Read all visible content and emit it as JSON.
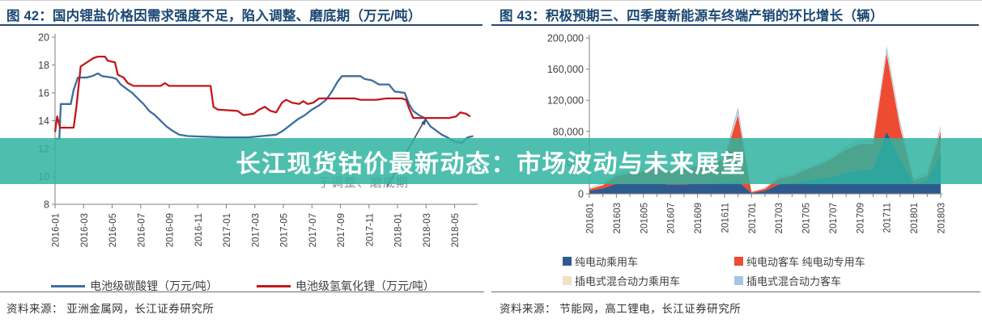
{
  "watermark": {
    "text": "长江现货钴价最新动态：市场波动与未来展望",
    "text_color": "#ffffff",
    "band_color": "rgba(47,180,160,0.85)"
  },
  "left_panel": {
    "title": "图 42：国内锂盐价格因需求强度不足，陷入调整、磨底期（万元/吨）",
    "annotation": "于调整、磨底期",
    "source": "资料来源： 亚洲金属网，长江证券研究所",
    "chart_data": {
      "type": "line",
      "title": "国内锂盐价格因需求强度不足，陷入调整、磨底期",
      "ylabel": "万元/吨",
      "ylim": [
        8,
        20
      ],
      "yticks": [
        8,
        10,
        12,
        14,
        16,
        18,
        20
      ],
      "grid": false,
      "legend_position": "bottom",
      "x_unit": "months since 2016-01",
      "xtick_positions": [
        0,
        2,
        4,
        6,
        8,
        10,
        12,
        14,
        16,
        18,
        20,
        22,
        24,
        26,
        28
      ],
      "xtick_labels": [
        "2016-01",
        "2016-03",
        "2016-05",
        "2016-07",
        "2016-09",
        "2016-11",
        "2017-01",
        "2017-03",
        "2017-05",
        "2017-07",
        "2017-09",
        "2017-11",
        "2018-01",
        "2018-03",
        "2018-05"
      ],
      "series": [
        {
          "name": "电池级碳酸锂（万元/吨）",
          "color": "#3d6d9e",
          "points": [
            [
              0,
              12.7
            ],
            [
              0.3,
              12.7
            ],
            [
              0.4,
              15.2
            ],
            [
              1.1,
              15.2
            ],
            [
              1.3,
              16.2
            ],
            [
              1.6,
              17.1
            ],
            [
              2.2,
              17.1
            ],
            [
              2.6,
              17.2
            ],
            [
              3.0,
              17.4
            ],
            [
              3.3,
              17.2
            ],
            [
              4.0,
              17.1
            ],
            [
              4.3,
              17.0
            ],
            [
              4.6,
              16.6
            ],
            [
              5.0,
              16.3
            ],
            [
              5.4,
              16.0
            ],
            [
              5.8,
              15.6
            ],
            [
              6.2,
              15.2
            ],
            [
              6.6,
              14.7
            ],
            [
              7.0,
              14.4
            ],
            [
              7.4,
              14.0
            ],
            [
              7.8,
              13.6
            ],
            [
              8.2,
              13.3
            ],
            [
              8.7,
              13.0
            ],
            [
              9.3,
              12.9
            ],
            [
              10.5,
              12.85
            ],
            [
              12.0,
              12.8
            ],
            [
              13.5,
              12.8
            ],
            [
              14.5,
              12.9
            ],
            [
              15.5,
              13.0
            ],
            [
              16.0,
              13.3
            ],
            [
              16.5,
              13.7
            ],
            [
              17.0,
              14.1
            ],
            [
              17.5,
              14.4
            ],
            [
              18.0,
              14.8
            ],
            [
              18.5,
              15.1
            ],
            [
              19.0,
              15.5
            ],
            [
              19.4,
              16.1
            ],
            [
              19.8,
              16.8
            ],
            [
              20.1,
              17.2
            ],
            [
              21.4,
              17.2
            ],
            [
              21.7,
              17.0
            ],
            [
              22.2,
              16.9
            ],
            [
              22.7,
              16.6
            ],
            [
              23.4,
              16.6
            ],
            [
              23.8,
              16.1
            ],
            [
              24.5,
              16.0
            ],
            [
              24.8,
              15.2
            ],
            [
              25.1,
              14.7
            ],
            [
              25.5,
              14.4
            ],
            [
              25.9,
              14.2
            ],
            [
              26.3,
              13.6
            ],
            [
              26.7,
              13.3
            ],
            [
              27.1,
              13.0
            ],
            [
              27.5,
              12.8
            ],
            [
              28.0,
              12.5
            ],
            [
              28.5,
              12.4
            ],
            [
              28.9,
              12.8
            ],
            [
              29.3,
              12.9
            ]
          ]
        },
        {
          "name": "电池级氢氧化锂（万元/吨）",
          "color": "#c2181d",
          "points": [
            [
              0,
              13.2
            ],
            [
              0.15,
              14.3
            ],
            [
              0.35,
              13.5
            ],
            [
              1.3,
              13.5
            ],
            [
              1.5,
              15.0
            ],
            [
              1.8,
              17.9
            ],
            [
              2.1,
              18.1
            ],
            [
              2.4,
              18.3
            ],
            [
              2.7,
              18.5
            ],
            [
              3.0,
              18.6
            ],
            [
              3.5,
              18.6
            ],
            [
              3.7,
              18.3
            ],
            [
              4.2,
              18.2
            ],
            [
              4.4,
              17.3
            ],
            [
              4.8,
              17.1
            ],
            [
              5.1,
              16.7
            ],
            [
              5.5,
              16.5
            ],
            [
              7.4,
              16.5
            ],
            [
              7.7,
              16.7
            ],
            [
              8.0,
              16.5
            ],
            [
              10.9,
              16.5
            ],
            [
              11.1,
              15.0
            ],
            [
              11.4,
              14.8
            ],
            [
              12.8,
              14.7
            ],
            [
              13.2,
              14.4
            ],
            [
              13.9,
              14.5
            ],
            [
              14.3,
              14.8
            ],
            [
              14.7,
              15.0
            ],
            [
              15.1,
              14.7
            ],
            [
              15.5,
              14.6
            ],
            [
              15.9,
              15.3
            ],
            [
              16.2,
              15.5
            ],
            [
              16.6,
              15.3
            ],
            [
              17.1,
              15.2
            ],
            [
              17.4,
              15.4
            ],
            [
              17.7,
              15.2
            ],
            [
              18.1,
              15.3
            ],
            [
              18.5,
              15.6
            ],
            [
              21.0,
              15.6
            ],
            [
              21.4,
              15.5
            ],
            [
              22.5,
              15.5
            ],
            [
              23.2,
              15.6
            ],
            [
              24.3,
              15.6
            ],
            [
              24.6,
              15.5
            ],
            [
              24.8,
              14.9
            ],
            [
              25.1,
              14.2
            ],
            [
              27.6,
              14.2
            ],
            [
              28.1,
              14.3
            ],
            [
              28.4,
              14.6
            ],
            [
              28.8,
              14.5
            ],
            [
              29.1,
              14.3
            ]
          ]
        }
      ]
    }
  },
  "right_panel": {
    "title": "图 43：积极预期三、四季度新能源车终端产销的环比增长（辆）",
    "source": "资料来源： 节能网，高工锂电，长江证券研究所",
    "chart_data": {
      "type": "area",
      "stacked": true,
      "title": "积极预期三、四季度新能源车终端产销的环比增长",
      "ylabel": "辆",
      "ylim": [
        0,
        200000
      ],
      "yticks": [
        0,
        40000,
        80000,
        120000,
        160000,
        200000
      ],
      "ytick_labels": [
        "0",
        "40,000",
        "80,000",
        "120,000",
        "160,000",
        "200,000"
      ],
      "grid": false,
      "legend_position": "bottom",
      "categories": [
        "201601",
        "201602",
        "201603",
        "201604",
        "201605",
        "201606",
        "201607",
        "201608",
        "201609",
        "201610",
        "201611",
        "201612",
        "201701",
        "201702",
        "201703",
        "201704",
        "201705",
        "201706",
        "201707",
        "201708",
        "201709",
        "201710",
        "201711",
        "201712",
        "201801",
        "201802",
        "201803"
      ],
      "xtick_positions": [
        0,
        2,
        4,
        6,
        8,
        10,
        12,
        14,
        16,
        18,
        20,
        22,
        24,
        26
      ],
      "xtick_labels": [
        "201601",
        "201603",
        "201605",
        "201607",
        "201609",
        "201611",
        "201701",
        "201703",
        "201705",
        "201707",
        "201709",
        "201711",
        "201801",
        "201803"
      ],
      "series": [
        {
          "name": "纯电动乘用车",
          "color": "#2e5b8f",
          "values": [
            4000,
            7000,
            13000,
            13000,
            13000,
            13000,
            12000,
            12000,
            13000,
            13000,
            15000,
            16000,
            1000,
            4000,
            12000,
            14000,
            17000,
            20000,
            22000,
            27000,
            30000,
            32000,
            80000,
            45000,
            13000,
            17000,
            52000
          ]
        },
        {
          "name": "纯电动客车 纯电动专用车",
          "color": "#ee4b33",
          "values": [
            2000,
            4000,
            10000,
            13000,
            16000,
            20000,
            17000,
            19000,
            23000,
            25000,
            30000,
            85000,
            1200,
            2500,
            8000,
            9000,
            14000,
            17000,
            24000,
            30000,
            34000,
            32000,
            100000,
            40000,
            4000,
            6000,
            28000
          ]
        },
        {
          "name": "插电式混合动力乘用车",
          "color": "#f4dfc7",
          "values": [
            1000,
            2000,
            2000,
            2000,
            2000,
            2000,
            2000,
            2000,
            3000,
            3000,
            3000,
            3000,
            500,
            1000,
            2000,
            2000,
            2000,
            2000,
            2000,
            3000,
            3000,
            3000,
            4000,
            4000,
            2000,
            3000,
            4000
          ]
        },
        {
          "name": "插电式混合动力客车",
          "color": "#a6c5e6",
          "values": [
            500,
            1000,
            1000,
            1000,
            1000,
            1000,
            1000,
            1000,
            1000,
            1000,
            2000,
            7000,
            300,
            500,
            1000,
            1000,
            1000,
            1000,
            1000,
            2000,
            2000,
            2000,
            6000,
            4000,
            1000,
            2000,
            3000
          ]
        }
      ]
    }
  }
}
